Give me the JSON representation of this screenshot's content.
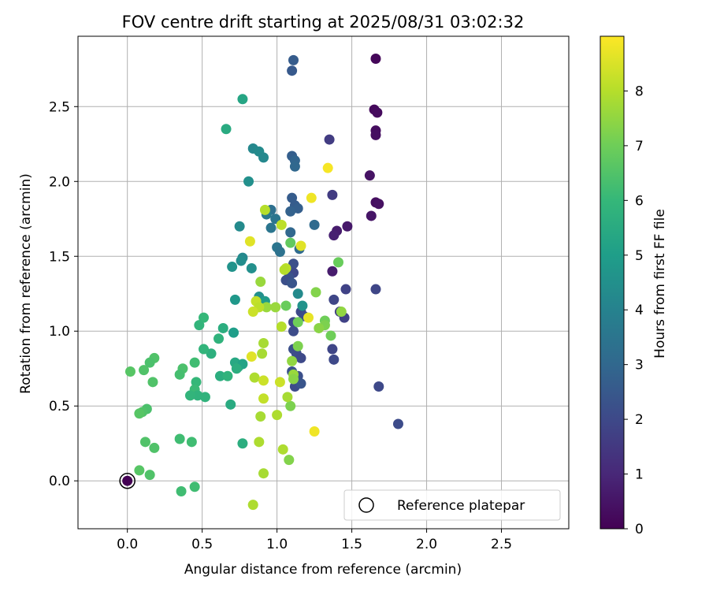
{
  "chart_data": {
    "type": "scatter",
    "title": "FOV centre drift starting at 2025/08/31 03:02:32",
    "xlabel": "Angular distance from reference (arcmin)",
    "ylabel": "Rotation from reference (arcmin)",
    "xlim": [
      -0.33,
      2.95
    ],
    "ylim": [
      -0.32,
      2.97
    ],
    "xticks": [
      0.0,
      0.5,
      1.0,
      1.5,
      2.0,
      2.5
    ],
    "yticks": [
      0.0,
      0.5,
      1.0,
      1.5,
      2.0,
      2.5
    ],
    "xtick_labels": [
      "0.0",
      "0.5",
      "1.0",
      "1.5",
      "2.0",
      "2.5"
    ],
    "ytick_labels": [
      "0.0",
      "0.5",
      "1.0",
      "1.5",
      "2.0",
      "2.5"
    ],
    "grid": true,
    "colormap": "viridis",
    "colorbar": {
      "label": "Hours from first FF file",
      "range": [
        0,
        9
      ],
      "ticks": [
        0,
        1,
        2,
        3,
        4,
        5,
        6,
        7,
        8
      ],
      "tick_labels": [
        "0",
        "1",
        "2",
        "3",
        "4",
        "5",
        "6",
        "7",
        "8"
      ]
    },
    "legend": {
      "placement": "lower-right",
      "entries": [
        "Reference platepar"
      ]
    },
    "reference_point": {
      "x": 0.0,
      "y": 0.0
    },
    "points": [
      {
        "x": 1.66,
        "y": 2.82,
        "c": 0.15
      },
      {
        "x": 1.65,
        "y": 2.48,
        "c": 0.2
      },
      {
        "x": 1.67,
        "y": 2.46,
        "c": 0.25
      },
      {
        "x": 1.66,
        "y": 2.34,
        "c": 0.3
      },
      {
        "x": 1.66,
        "y": 2.31,
        "c": 0.35
      },
      {
        "x": 1.62,
        "y": 2.04,
        "c": 0.45
      },
      {
        "x": 1.66,
        "y": 1.86,
        "c": 0.3
      },
      {
        "x": 1.68,
        "y": 1.85,
        "c": 0.4
      },
      {
        "x": 1.63,
        "y": 1.77,
        "c": 0.5
      },
      {
        "x": 1.47,
        "y": 1.7,
        "c": 0.6
      },
      {
        "x": 1.4,
        "y": 1.67,
        "c": 0.7
      },
      {
        "x": 1.38,
        "y": 1.64,
        "c": 0.8
      },
      {
        "x": 1.37,
        "y": 1.4,
        "c": 0.7
      },
      {
        "x": 1.11,
        "y": 2.81,
        "c": 2.6
      },
      {
        "x": 1.1,
        "y": 2.74,
        "c": 2.5
      },
      {
        "x": 1.35,
        "y": 2.28,
        "c": 1.6
      },
      {
        "x": 1.37,
        "y": 1.91,
        "c": 1.6
      },
      {
        "x": 1.1,
        "y": 2.17,
        "c": 2.7
      },
      {
        "x": 1.12,
        "y": 2.14,
        "c": 2.9
      },
      {
        "x": 1.12,
        "y": 2.1,
        "c": 3.0
      },
      {
        "x": 1.66,
        "y": 1.28,
        "c": 1.9
      },
      {
        "x": 1.46,
        "y": 1.28,
        "c": 1.8
      },
      {
        "x": 1.38,
        "y": 1.21,
        "c": 1.9
      },
      {
        "x": 1.42,
        "y": 1.13,
        "c": 1.7
      },
      {
        "x": 1.45,
        "y": 1.09,
        "c": 1.8
      },
      {
        "x": 1.37,
        "y": 0.88,
        "c": 1.9
      },
      {
        "x": 1.38,
        "y": 0.81,
        "c": 2.0
      },
      {
        "x": 1.68,
        "y": 0.63,
        "c": 2.0
      },
      {
        "x": 1.81,
        "y": 0.38,
        "c": 2.1
      },
      {
        "x": 1.1,
        "y": 1.89,
        "c": 2.6
      },
      {
        "x": 1.12,
        "y": 1.84,
        "c": 2.6
      },
      {
        "x": 1.14,
        "y": 1.82,
        "c": 2.7
      },
      {
        "x": 1.09,
        "y": 1.8,
        "c": 2.8
      },
      {
        "x": 1.25,
        "y": 1.71,
        "c": 3.1
      },
      {
        "x": 1.09,
        "y": 1.66,
        "c": 3.0
      },
      {
        "x": 1.15,
        "y": 1.55,
        "c": 3.1
      },
      {
        "x": 1.11,
        "y": 1.45,
        "c": 2.2
      },
      {
        "x": 1.11,
        "y": 1.39,
        "c": 2.0
      },
      {
        "x": 1.08,
        "y": 1.36,
        "c": 2.3
      },
      {
        "x": 1.06,
        "y": 1.34,
        "c": 2.2
      },
      {
        "x": 1.1,
        "y": 1.32,
        "c": 2.4
      },
      {
        "x": 1.16,
        "y": 1.13,
        "c": 2.0
      },
      {
        "x": 1.18,
        "y": 1.1,
        "c": 2.1
      },
      {
        "x": 1.11,
        "y": 1.06,
        "c": 2.0
      },
      {
        "x": 1.11,
        "y": 1.0,
        "c": 2.1
      },
      {
        "x": 1.11,
        "y": 0.88,
        "c": 2.2
      },
      {
        "x": 1.13,
        "y": 0.85,
        "c": 2.1
      },
      {
        "x": 1.16,
        "y": 0.82,
        "c": 2.0
      },
      {
        "x": 1.1,
        "y": 0.73,
        "c": 2.3
      },
      {
        "x": 1.14,
        "y": 0.7,
        "c": 2.2
      },
      {
        "x": 1.12,
        "y": 0.63,
        "c": 2.1
      },
      {
        "x": 1.16,
        "y": 0.65,
        "c": 2.4
      },
      {
        "x": 0.96,
        "y": 1.81,
        "c": 3.3
      },
      {
        "x": 0.93,
        "y": 1.78,
        "c": 3.6
      },
      {
        "x": 0.99,
        "y": 1.75,
        "c": 3.5
      },
      {
        "x": 0.96,
        "y": 1.69,
        "c": 3.5
      },
      {
        "x": 1.0,
        "y": 1.56,
        "c": 3.5
      },
      {
        "x": 1.02,
        "y": 1.53,
        "c": 3.4
      },
      {
        "x": 1.14,
        "y": 1.25,
        "c": 4.3
      },
      {
        "x": 1.17,
        "y": 1.17,
        "c": 4.6
      },
      {
        "x": 0.84,
        "y": 2.22,
        "c": 4.2
      },
      {
        "x": 0.88,
        "y": 2.2,
        "c": 4.3
      },
      {
        "x": 0.91,
        "y": 2.16,
        "c": 4.2
      },
      {
        "x": 0.81,
        "y": 2.0,
        "c": 4.5
      },
      {
        "x": 0.75,
        "y": 1.7,
        "c": 4.3
      },
      {
        "x": 0.77,
        "y": 1.49,
        "c": 4.2
      },
      {
        "x": 0.76,
        "y": 1.47,
        "c": 4.4
      },
      {
        "x": 0.7,
        "y": 1.43,
        "c": 4.6
      },
      {
        "x": 0.83,
        "y": 1.42,
        "c": 4.5
      },
      {
        "x": 0.88,
        "y": 1.23,
        "c": 4.5
      },
      {
        "x": 0.72,
        "y": 1.21,
        "c": 4.8
      },
      {
        "x": 0.92,
        "y": 1.2,
        "c": 4.9
      },
      {
        "x": 0.71,
        "y": 0.99,
        "c": 5.0
      },
      {
        "x": 0.77,
        "y": 0.25,
        "c": 5.6
      },
      {
        "x": 0.77,
        "y": 2.55,
        "c": 5.3
      },
      {
        "x": 0.66,
        "y": 2.35,
        "c": 5.5
      },
      {
        "x": 0.64,
        "y": 1.02,
        "c": 5.6
      },
      {
        "x": 0.61,
        "y": 0.95,
        "c": 5.8
      },
      {
        "x": 0.56,
        "y": 0.85,
        "c": 5.7
      },
      {
        "x": 0.51,
        "y": 0.88,
        "c": 5.9
      },
      {
        "x": 0.72,
        "y": 0.79,
        "c": 5.4
      },
      {
        "x": 0.74,
        "y": 0.76,
        "c": 5.5
      },
      {
        "x": 0.77,
        "y": 0.78,
        "c": 5.2
      },
      {
        "x": 0.73,
        "y": 0.75,
        "c": 5.6
      },
      {
        "x": 0.62,
        "y": 0.7,
        "c": 5.6
      },
      {
        "x": 0.67,
        "y": 0.7,
        "c": 5.8
      },
      {
        "x": 0.69,
        "y": 0.51,
        "c": 5.5
      },
      {
        "x": 0.51,
        "y": 1.09,
        "c": 6.0
      },
      {
        "x": 0.48,
        "y": 1.04,
        "c": 5.9
      },
      {
        "x": 0.45,
        "y": 0.79,
        "c": 6.2
      },
      {
        "x": 0.46,
        "y": 0.66,
        "c": 6.0
      },
      {
        "x": 0.45,
        "y": 0.61,
        "c": 6.1
      },
      {
        "x": 0.47,
        "y": 0.57,
        "c": 5.8
      },
      {
        "x": 0.42,
        "y": 0.57,
        "c": 5.9
      },
      {
        "x": 0.52,
        "y": 0.56,
        "c": 5.8
      },
      {
        "x": 0.37,
        "y": 0.75,
        "c": 6.4
      },
      {
        "x": 0.35,
        "y": 0.71,
        "c": 6.3
      },
      {
        "x": 0.35,
        "y": 0.28,
        "c": 6.2
      },
      {
        "x": 0.43,
        "y": 0.26,
        "c": 6.2
      },
      {
        "x": 0.36,
        "y": -0.07,
        "c": 6.2
      },
      {
        "x": 0.45,
        "y": -0.04,
        "c": 6.2
      },
      {
        "x": 0.18,
        "y": 0.82,
        "c": 6.5
      },
      {
        "x": 0.15,
        "y": 0.79,
        "c": 6.4
      },
      {
        "x": 0.11,
        "y": 0.74,
        "c": 6.5
      },
      {
        "x": 0.02,
        "y": 0.73,
        "c": 6.6
      },
      {
        "x": 0.17,
        "y": 0.66,
        "c": 6.5
      },
      {
        "x": 0.13,
        "y": 0.48,
        "c": 6.4
      },
      {
        "x": 0.1,
        "y": 0.46,
        "c": 6.5
      },
      {
        "x": 0.08,
        "y": 0.45,
        "c": 6.6
      },
      {
        "x": 0.12,
        "y": 0.26,
        "c": 6.5
      },
      {
        "x": 0.18,
        "y": 0.22,
        "c": 6.5
      },
      {
        "x": 0.08,
        "y": 0.07,
        "c": 6.6
      },
      {
        "x": 0.15,
        "y": 0.04,
        "c": 6.5
      },
      {
        "x": 1.09,
        "y": 1.59,
        "c": 6.8
      },
      {
        "x": 1.41,
        "y": 1.46,
        "c": 6.9
      },
      {
        "x": 1.06,
        "y": 1.17,
        "c": 6.9
      },
      {
        "x": 1.14,
        "y": 1.06,
        "c": 7.0
      },
      {
        "x": 1.32,
        "y": 1.07,
        "c": 7.0
      },
      {
        "x": 1.36,
        "y": 0.97,
        "c": 7.0
      },
      {
        "x": 1.32,
        "y": 1.04,
        "c": 7.2
      },
      {
        "x": 1.28,
        "y": 1.02,
        "c": 7.4
      },
      {
        "x": 1.14,
        "y": 0.9,
        "c": 7.2
      },
      {
        "x": 1.26,
        "y": 1.26,
        "c": 7.3
      },
      {
        "x": 1.43,
        "y": 1.13,
        "c": 7.5
      },
      {
        "x": 1.09,
        "y": 0.5,
        "c": 7.2
      },
      {
        "x": 1.08,
        "y": 0.14,
        "c": 7.3
      },
      {
        "x": 0.89,
        "y": 1.33,
        "c": 7.6
      },
      {
        "x": 0.99,
        "y": 1.16,
        "c": 7.6
      },
      {
        "x": 0.93,
        "y": 1.16,
        "c": 7.6
      },
      {
        "x": 1.1,
        "y": 0.8,
        "c": 7.5
      },
      {
        "x": 1.11,
        "y": 0.71,
        "c": 7.6
      },
      {
        "x": 1.11,
        "y": 0.68,
        "c": 7.4
      },
      {
        "x": 0.91,
        "y": 0.92,
        "c": 7.8
      },
      {
        "x": 0.9,
        "y": 0.85,
        "c": 7.8
      },
      {
        "x": 0.85,
        "y": 0.69,
        "c": 7.9
      },
      {
        "x": 1.07,
        "y": 0.56,
        "c": 7.8
      },
      {
        "x": 0.89,
        "y": 0.43,
        "c": 7.8
      },
      {
        "x": 1.0,
        "y": 0.44,
        "c": 7.9
      },
      {
        "x": 0.88,
        "y": 0.26,
        "c": 7.9
      },
      {
        "x": 1.04,
        "y": 0.21,
        "c": 7.9
      },
      {
        "x": 0.91,
        "y": 0.05,
        "c": 7.8
      },
      {
        "x": 0.84,
        "y": -0.16,
        "c": 7.9
      },
      {
        "x": 0.92,
        "y": 1.81,
        "c": 8.0
      },
      {
        "x": 1.03,
        "y": 1.71,
        "c": 8.1
      },
      {
        "x": 1.06,
        "y": 1.42,
        "c": 8.1
      },
      {
        "x": 1.05,
        "y": 1.41,
        "c": 8.0
      },
      {
        "x": 1.03,
        "y": 1.03,
        "c": 8.0
      },
      {
        "x": 0.86,
        "y": 1.2,
        "c": 8.2
      },
      {
        "x": 0.88,
        "y": 1.16,
        "c": 8.1
      },
      {
        "x": 0.84,
        "y": 1.13,
        "c": 8.3
      },
      {
        "x": 0.91,
        "y": 0.67,
        "c": 8.3
      },
      {
        "x": 0.91,
        "y": 0.55,
        "c": 8.2
      },
      {
        "x": 1.02,
        "y": 0.66,
        "c": 8.3
      },
      {
        "x": 0.82,
        "y": 1.6,
        "c": 8.6
      },
      {
        "x": 1.16,
        "y": 1.57,
        "c": 8.6
      },
      {
        "x": 0.83,
        "y": 0.83,
        "c": 8.6
      },
      {
        "x": 1.34,
        "y": 2.09,
        "c": 8.9
      },
      {
        "x": 1.23,
        "y": 1.89,
        "c": 8.8
      },
      {
        "x": 1.21,
        "y": 1.09,
        "c": 8.7
      },
      {
        "x": 1.25,
        "y": 0.33,
        "c": 8.8
      }
    ]
  }
}
